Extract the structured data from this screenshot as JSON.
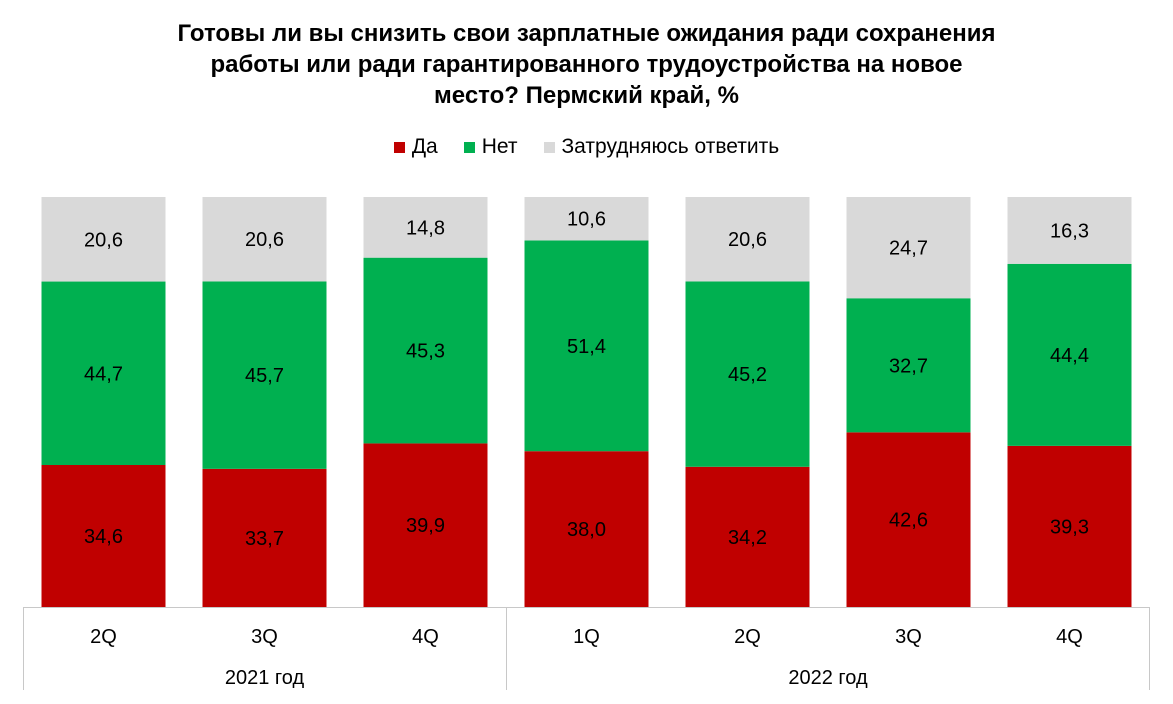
{
  "title_lines": [
    "Готовы ли вы снизить свои зарплатные ожидания ради сохранения",
    "работы или ради гарантированного трудоустройства на новое",
    "место? Пермский край, %"
  ],
  "chart_data": {
    "type": "bar",
    "stacked": true,
    "title": "Готовы ли вы снизить свои зарплатные ожидания ради сохранения работы или ради гарантированного трудоустройства на новое место? Пермский край, %",
    "categories": [
      "2Q",
      "3Q",
      "4Q",
      "1Q",
      "2Q",
      "3Q",
      "4Q"
    ],
    "groups": [
      {
        "label": "2021 год",
        "count": 3
      },
      {
        "label": "2022 год",
        "count": 4
      }
    ],
    "series": [
      {
        "name": "Да",
        "color": "#c00000",
        "values": [
          34.6,
          33.7,
          39.9,
          38.0,
          34.2,
          42.6,
          39.3
        ]
      },
      {
        "name": "Нет",
        "color": "#00b050",
        "values": [
          44.7,
          45.7,
          45.3,
          51.4,
          45.2,
          32.7,
          44.4
        ]
      },
      {
        "name": "Затрудняюсь ответить",
        "color": "#d9d9d9",
        "values": [
          20.6,
          20.6,
          14.8,
          10.6,
          20.6,
          24.7,
          16.3
        ]
      }
    ],
    "ylim": [
      0,
      100
    ],
    "grid": false,
    "legend": "top"
  }
}
